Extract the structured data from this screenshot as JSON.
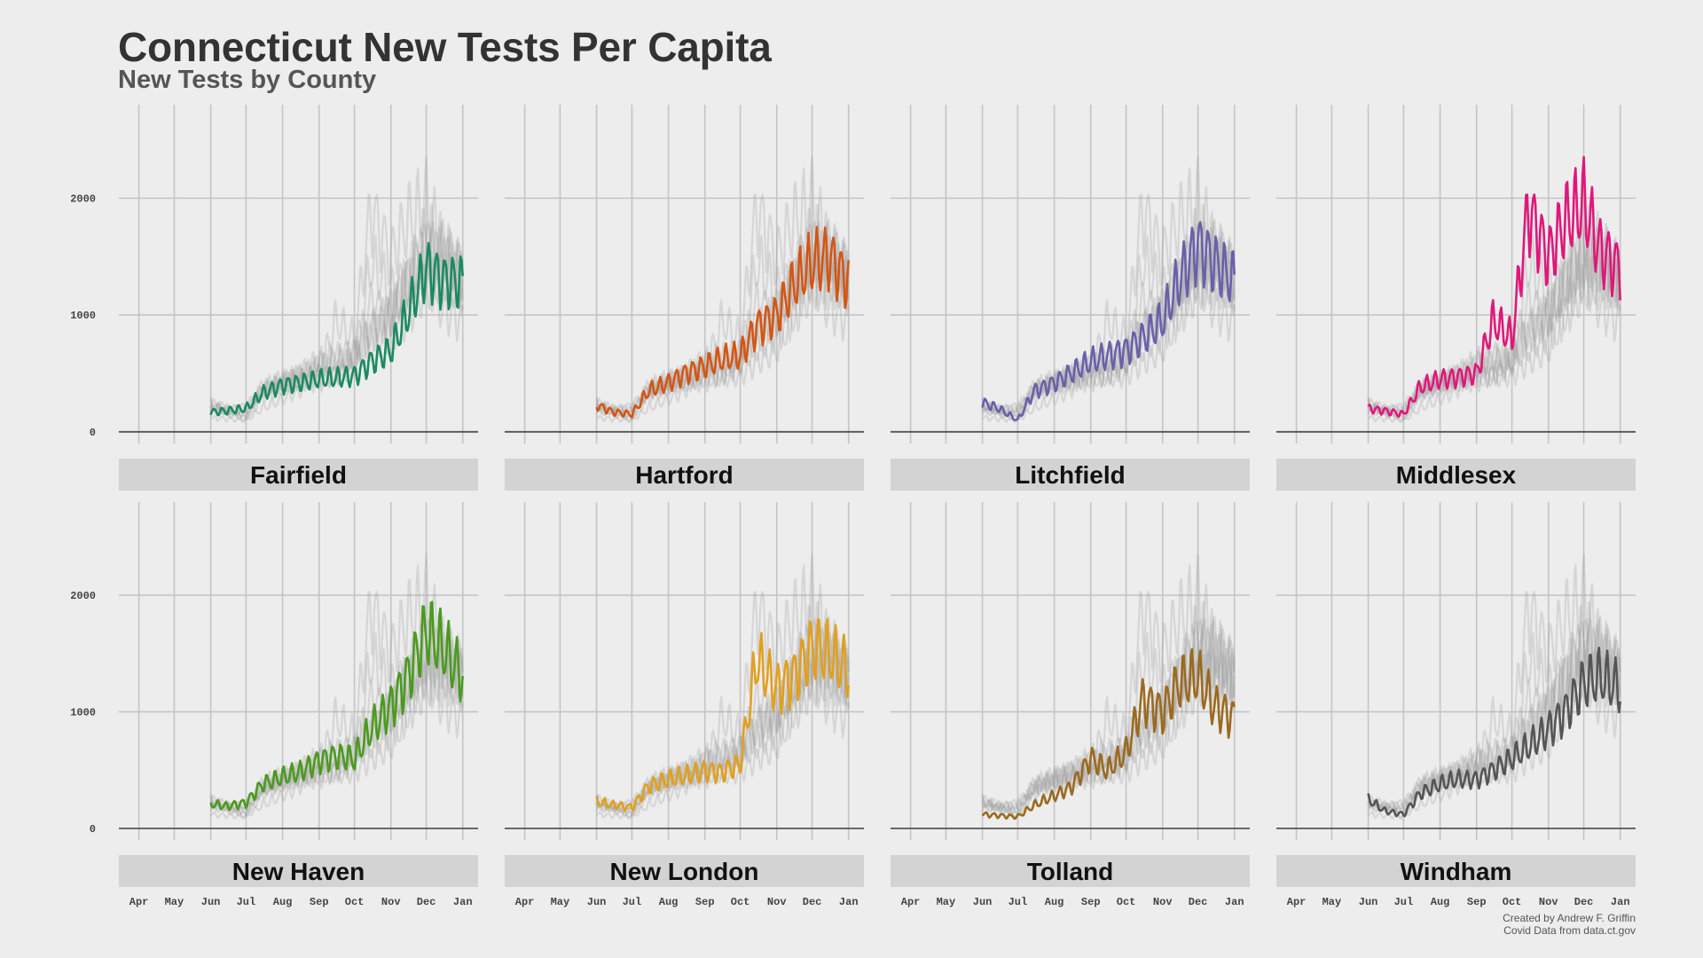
{
  "title": "Connecticut New Tests Per Capita",
  "subtitle": "New Tests by County",
  "caption": [
    "Created by Andrew F. Griffin",
    "Covid Data from data.ct.gov"
  ],
  "colors": {
    "background": "#ededed",
    "grid": "#c4c4c4",
    "baseline": "#555555",
    "strip": "#d3d3d3",
    "ghost": "#9a9a9a"
  },
  "chart_data": {
    "type": "line",
    "layout": "small-multiples-4x2",
    "x_tick_labels": [
      "Apr",
      "May",
      "Jun",
      "Jul",
      "Aug",
      "Sep",
      "Oct",
      "Nov",
      "Dec",
      "Jan"
    ],
    "x_tick_dates": [
      "2020-04-01",
      "2020-05-01",
      "2020-06-01",
      "2020-07-01",
      "2020-08-01",
      "2020-09-01",
      "2020-10-01",
      "2020-11-01",
      "2020-12-01",
      "2021-01-01"
    ],
    "xlim": [
      "2020-03-15",
      "2021-01-14"
    ],
    "y_ticks": [
      0,
      1000,
      2000
    ],
    "ylim": [
      -100,
      2800
    ],
    "grid": true,
    "background_series": "all other counties shown in grey",
    "series": [
      {
        "name": "Fairfield",
        "color": "#1b8a5f",
        "x": [
          "2020-06-01",
          "2020-06-15",
          "2020-07-01",
          "2020-07-15",
          "2020-08-01",
          "2020-08-15",
          "2020-09-01",
          "2020-09-15",
          "2020-10-01",
          "2020-10-15",
          "2020-11-01",
          "2020-11-15",
          "2020-12-01",
          "2020-12-15",
          "2021-01-01"
        ],
        "y": [
          170,
          180,
          200,
          330,
          400,
          420,
          450,
          460,
          480,
          600,
          700,
          1000,
          1400,
          1300,
          1280
        ]
      },
      {
        "name": "Hartford",
        "color": "#d35614",
        "x": [
          "2020-06-01",
          "2020-06-15",
          "2020-07-01",
          "2020-07-15",
          "2020-08-01",
          "2020-08-15",
          "2020-09-01",
          "2020-09-15",
          "2020-10-01",
          "2020-10-15",
          "2020-11-01",
          "2020-11-15",
          "2020-12-01",
          "2020-12-15",
          "2021-01-01"
        ],
        "y": [
          230,
          170,
          150,
          350,
          420,
          500,
          560,
          620,
          650,
          900,
          1000,
          1250,
          1450,
          1500,
          1280
        ]
      },
      {
        "name": "Litchfield",
        "color": "#6a60a9",
        "x": [
          "2020-06-01",
          "2020-06-15",
          "2020-07-01",
          "2020-07-15",
          "2020-08-01",
          "2020-08-15",
          "2020-09-01",
          "2020-09-15",
          "2020-10-01",
          "2020-10-15",
          "2020-11-01",
          "2020-11-15",
          "2020-12-01",
          "2020-12-15",
          "2021-01-01"
        ],
        "y": [
          250,
          200,
          100,
          350,
          420,
          500,
          600,
          650,
          700,
          800,
          950,
          1300,
          1600,
          1450,
          1300
        ]
      },
      {
        "name": "Middlesex",
        "color": "#e0177a",
        "x": [
          "2020-06-01",
          "2020-06-15",
          "2020-07-01",
          "2020-07-15",
          "2020-08-01",
          "2020-08-15",
          "2020-09-01",
          "2020-09-15",
          "2020-10-01",
          "2020-10-15",
          "2020-11-01",
          "2020-11-15",
          "2020-12-01",
          "2020-12-15",
          "2021-01-01"
        ],
        "y": [
          200,
          180,
          150,
          380,
          450,
          470,
          500,
          950,
          800,
          1900,
          1500,
          1800,
          1950,
          1550,
          1400
        ]
      },
      {
        "name": "New Haven",
        "color": "#4b9a1e",
        "x": [
          "2020-06-01",
          "2020-06-15",
          "2020-07-01",
          "2020-07-15",
          "2020-08-01",
          "2020-08-15",
          "2020-09-01",
          "2020-09-15",
          "2020-10-01",
          "2020-10-15",
          "2020-11-01",
          "2020-11-15",
          "2020-12-01",
          "2020-12-15",
          "2021-01-01"
        ],
        "y": [
          210,
          190,
          220,
          380,
          440,
          480,
          580,
          620,
          600,
          850,
          1050,
          1300,
          1700,
          1550,
          1300
        ]
      },
      {
        "name": "New London",
        "color": "#e0a020",
        "x": [
          "2020-06-01",
          "2020-06-15",
          "2020-07-01",
          "2020-07-15",
          "2020-08-01",
          "2020-08-15",
          "2020-09-01",
          "2020-09-15",
          "2020-10-01",
          "2020-10-15",
          "2020-11-01",
          "2020-11-15",
          "2020-12-01",
          "2020-12-15",
          "2021-01-01"
        ],
        "y": [
          230,
          200,
          180,
          360,
          420,
          450,
          500,
          480,
          550,
          1450,
          1200,
          1300,
          1550,
          1500,
          1350
        ]
      },
      {
        "name": "Tolland",
        "color": "#9a6a1f",
        "x": [
          "2020-06-01",
          "2020-06-15",
          "2020-07-01",
          "2020-07-15",
          "2020-08-01",
          "2020-08-15",
          "2020-09-01",
          "2020-09-15",
          "2020-10-01",
          "2020-10-15",
          "2020-11-01",
          "2020-11-15",
          "2020-12-01",
          "2020-12-15",
          "2021-01-01"
        ],
        "y": [
          120,
          110,
          100,
          200,
          280,
          350,
          600,
          500,
          650,
          1100,
          1000,
          1250,
          1300,
          1050,
          950
        ]
      },
      {
        "name": "Windham",
        "color": "#555555",
        "x": [
          "2020-06-01",
          "2020-06-15",
          "2020-07-01",
          "2020-07-15",
          "2020-08-01",
          "2020-08-15",
          "2020-09-01",
          "2020-09-15",
          "2020-10-01",
          "2020-10-15",
          "2020-11-01",
          "2020-11-15",
          "2020-12-01",
          "2020-12-15",
          "2021-01-01"
        ],
        "y": [
          250,
          150,
          120,
          300,
          380,
          420,
          420,
          500,
          600,
          700,
          850,
          1000,
          1250,
          1300,
          1200
        ]
      }
    ]
  }
}
